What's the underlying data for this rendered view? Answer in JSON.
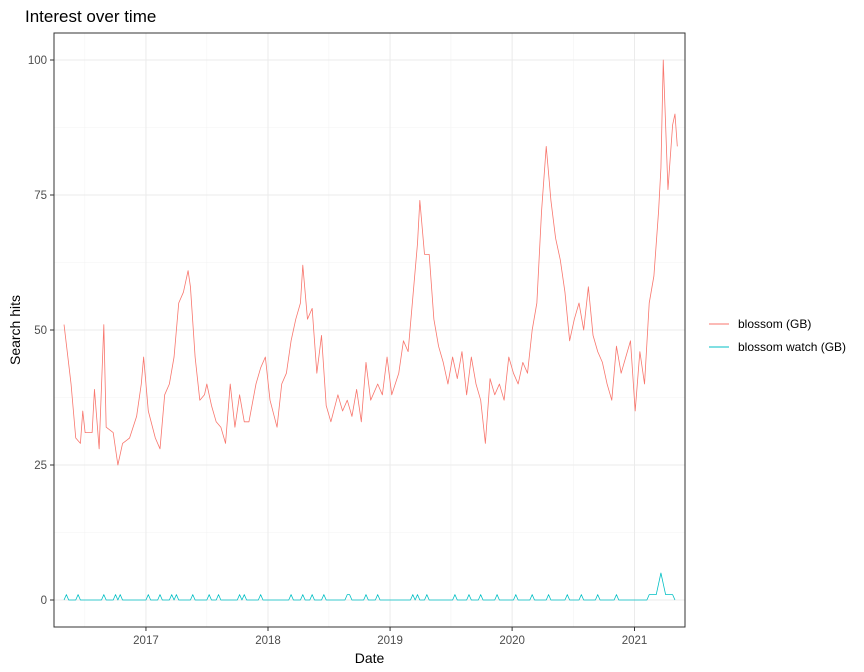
{
  "chart_data": {
    "type": "line",
    "title": "Interest over time",
    "xlabel": "Date",
    "ylabel": "Search hits",
    "xlim": [
      "2016-04-01",
      "2021-06-01"
    ],
    "ylim": [
      -5,
      105
    ],
    "x_ticks": [
      "2017-01-01",
      "2018-01-01",
      "2019-01-01",
      "2020-01-01",
      "2021-01-01"
    ],
    "x_tick_labels": [
      "2017",
      "2018",
      "2019",
      "2020",
      "2021"
    ],
    "y_ticks": [
      0,
      25,
      50,
      75,
      100
    ],
    "y_tick_labels": [
      "0",
      "25",
      "50",
      "75",
      "100"
    ],
    "grid": true,
    "legend_position": "right",
    "series": [
      {
        "name": "blossom (GB)",
        "color": "#F8766D",
        "points": [
          [
            "2016-05-01",
            51
          ],
          [
            "2016-05-22",
            40
          ],
          [
            "2016-06-05",
            30
          ],
          [
            "2016-06-19",
            29
          ],
          [
            "2016-06-26",
            35
          ],
          [
            "2016-07-03",
            31
          ],
          [
            "2016-07-24",
            31
          ],
          [
            "2016-07-31",
            39
          ],
          [
            "2016-08-14",
            28
          ],
          [
            "2016-08-28",
            51
          ],
          [
            "2016-09-04",
            32
          ],
          [
            "2016-09-25",
            31
          ],
          [
            "2016-10-09",
            25
          ],
          [
            "2016-10-23",
            29
          ],
          [
            "2016-11-13",
            30
          ],
          [
            "2016-12-04",
            34
          ],
          [
            "2016-12-18",
            40
          ],
          [
            "2016-12-25",
            45
          ],
          [
            "2017-01-08",
            35
          ],
          [
            "2017-01-29",
            30
          ],
          [
            "2017-02-12",
            28
          ],
          [
            "2017-02-26",
            38
          ],
          [
            "2017-03-12",
            40
          ],
          [
            "2017-03-26",
            45
          ],
          [
            "2017-04-09",
            55
          ],
          [
            "2017-04-23",
            57
          ],
          [
            "2017-05-07",
            61
          ],
          [
            "2017-05-14",
            58
          ],
          [
            "2017-05-28",
            45
          ],
          [
            "2017-06-11",
            37
          ],
          [
            "2017-06-25",
            38
          ],
          [
            "2017-07-02",
            40
          ],
          [
            "2017-07-16",
            36
          ],
          [
            "2017-07-30",
            33
          ],
          [
            "2017-08-13",
            32
          ],
          [
            "2017-08-27",
            29
          ],
          [
            "2017-09-10",
            40
          ],
          [
            "2017-09-24",
            32
          ],
          [
            "2017-10-08",
            38
          ],
          [
            "2017-10-22",
            33
          ],
          [
            "2017-11-05",
            33
          ],
          [
            "2017-11-26",
            40
          ],
          [
            "2017-12-10",
            43
          ],
          [
            "2017-12-24",
            45
          ],
          [
            "2018-01-07",
            37
          ],
          [
            "2018-01-28",
            32
          ],
          [
            "2018-02-11",
            40
          ],
          [
            "2018-02-25",
            42
          ],
          [
            "2018-03-11",
            48
          ],
          [
            "2018-03-25",
            52
          ],
          [
            "2018-04-08",
            55
          ],
          [
            "2018-04-15",
            62
          ],
          [
            "2018-04-29",
            52
          ],
          [
            "2018-05-13",
            54
          ],
          [
            "2018-05-27",
            42
          ],
          [
            "2018-06-10",
            49
          ],
          [
            "2018-06-24",
            36
          ],
          [
            "2018-07-08",
            33
          ],
          [
            "2018-07-29",
            38
          ],
          [
            "2018-08-12",
            35
          ],
          [
            "2018-08-26",
            37
          ],
          [
            "2018-09-09",
            34
          ],
          [
            "2018-09-23",
            39
          ],
          [
            "2018-10-07",
            33
          ],
          [
            "2018-10-21",
            44
          ],
          [
            "2018-11-04",
            37
          ],
          [
            "2018-11-25",
            40
          ],
          [
            "2018-12-09",
            38
          ],
          [
            "2018-12-23",
            45
          ],
          [
            "2019-01-06",
            38
          ],
          [
            "2019-01-27",
            42
          ],
          [
            "2019-02-10",
            48
          ],
          [
            "2019-02-24",
            46
          ],
          [
            "2019-03-10",
            56
          ],
          [
            "2019-03-24",
            66
          ],
          [
            "2019-03-31",
            74
          ],
          [
            "2019-04-14",
            64
          ],
          [
            "2019-04-28",
            64
          ],
          [
            "2019-05-12",
            52
          ],
          [
            "2019-05-26",
            47
          ],
          [
            "2019-06-09",
            44
          ],
          [
            "2019-06-23",
            40
          ],
          [
            "2019-07-07",
            45
          ],
          [
            "2019-07-21",
            41
          ],
          [
            "2019-08-04",
            46
          ],
          [
            "2019-08-18",
            38
          ],
          [
            "2019-09-01",
            45
          ],
          [
            "2019-09-15",
            40
          ],
          [
            "2019-09-29",
            37
          ],
          [
            "2019-10-13",
            29
          ],
          [
            "2019-10-27",
            41
          ],
          [
            "2019-11-10",
            38
          ],
          [
            "2019-11-24",
            40
          ],
          [
            "2019-12-08",
            37
          ],
          [
            "2019-12-22",
            45
          ],
          [
            "2020-01-05",
            42
          ],
          [
            "2020-01-19",
            40
          ],
          [
            "2020-02-02",
            44
          ],
          [
            "2020-02-16",
            42
          ],
          [
            "2020-03-01",
            50
          ],
          [
            "2020-03-15",
            55
          ],
          [
            "2020-03-29",
            72
          ],
          [
            "2020-04-12",
            84
          ],
          [
            "2020-04-26",
            74
          ],
          [
            "2020-05-10",
            67
          ],
          [
            "2020-05-24",
            63
          ],
          [
            "2020-06-07",
            57
          ],
          [
            "2020-06-21",
            48
          ],
          [
            "2020-07-05",
            52
          ],
          [
            "2020-07-19",
            55
          ],
          [
            "2020-08-02",
            50
          ],
          [
            "2020-08-16",
            58
          ],
          [
            "2020-08-30",
            49
          ],
          [
            "2020-09-13",
            46
          ],
          [
            "2020-09-27",
            44
          ],
          [
            "2020-10-11",
            40
          ],
          [
            "2020-10-25",
            37
          ],
          [
            "2020-11-08",
            47
          ],
          [
            "2020-11-22",
            42
          ],
          [
            "2020-12-06",
            45
          ],
          [
            "2020-12-20",
            48
          ],
          [
            "2021-01-03",
            35
          ],
          [
            "2021-01-17",
            46
          ],
          [
            "2021-01-31",
            40
          ],
          [
            "2021-02-14",
            55
          ],
          [
            "2021-02-28",
            60
          ],
          [
            "2021-03-14",
            72
          ],
          [
            "2021-03-21",
            80
          ],
          [
            "2021-03-28",
            100
          ],
          [
            "2021-04-11",
            76
          ],
          [
            "2021-04-25",
            88
          ],
          [
            "2021-05-02",
            90
          ],
          [
            "2021-05-09",
            84
          ]
        ]
      },
      {
        "name": "blossom watch (GB)",
        "color": "#00BFC4",
        "points": [
          [
            "2016-05-01",
            0
          ],
          [
            "2016-05-08",
            1
          ],
          [
            "2016-05-15",
            0
          ],
          [
            "2016-06-05",
            0
          ],
          [
            "2016-06-12",
            1
          ],
          [
            "2016-06-19",
            0
          ],
          [
            "2016-08-21",
            0
          ],
          [
            "2016-08-28",
            1
          ],
          [
            "2016-09-04",
            0
          ],
          [
            "2016-09-25",
            0
          ],
          [
            "2016-10-02",
            1
          ],
          [
            "2016-10-09",
            0
          ],
          [
            "2016-10-16",
            1
          ],
          [
            "2016-10-23",
            0
          ],
          [
            "2017-01-01",
            0
          ],
          [
            "2017-01-08",
            1
          ],
          [
            "2017-01-15",
            0
          ],
          [
            "2017-02-05",
            0
          ],
          [
            "2017-02-12",
            1
          ],
          [
            "2017-02-19",
            0
          ],
          [
            "2017-03-12",
            0
          ],
          [
            "2017-03-19",
            1
          ],
          [
            "2017-03-26",
            0
          ],
          [
            "2017-04-02",
            1
          ],
          [
            "2017-04-09",
            0
          ],
          [
            "2017-05-14",
            0
          ],
          [
            "2017-05-21",
            1
          ],
          [
            "2017-05-28",
            0
          ],
          [
            "2017-07-02",
            0
          ],
          [
            "2017-07-09",
            1
          ],
          [
            "2017-07-16",
            0
          ],
          [
            "2017-07-30",
            0
          ],
          [
            "2017-08-06",
            1
          ],
          [
            "2017-08-13",
            0
          ],
          [
            "2017-10-01",
            0
          ],
          [
            "2017-10-08",
            1
          ],
          [
            "2017-10-15",
            0
          ],
          [
            "2017-10-22",
            1
          ],
          [
            "2017-10-29",
            0
          ],
          [
            "2017-12-03",
            0
          ],
          [
            "2017-12-10",
            1
          ],
          [
            "2017-12-17",
            0
          ],
          [
            "2018-03-04",
            0
          ],
          [
            "2018-03-11",
            1
          ],
          [
            "2018-03-18",
            0
          ],
          [
            "2018-04-08",
            0
          ],
          [
            "2018-04-15",
            1
          ],
          [
            "2018-04-22",
            0
          ],
          [
            "2018-05-06",
            0
          ],
          [
            "2018-05-13",
            1
          ],
          [
            "2018-05-20",
            0
          ],
          [
            "2018-06-10",
            0
          ],
          [
            "2018-06-17",
            1
          ],
          [
            "2018-06-24",
            0
          ],
          [
            "2018-08-19",
            0
          ],
          [
            "2018-08-26",
            1
          ],
          [
            "2018-09-02",
            1
          ],
          [
            "2018-09-09",
            0
          ],
          [
            "2018-10-14",
            0
          ],
          [
            "2018-10-21",
            1
          ],
          [
            "2018-10-28",
            0
          ],
          [
            "2018-11-18",
            0
          ],
          [
            "2018-11-25",
            1
          ],
          [
            "2018-12-02",
            0
          ],
          [
            "2019-03-03",
            0
          ],
          [
            "2019-03-10",
            1
          ],
          [
            "2019-03-17",
            0
          ],
          [
            "2019-03-24",
            1
          ],
          [
            "2019-03-31",
            0
          ],
          [
            "2019-04-14",
            0
          ],
          [
            "2019-04-21",
            1
          ],
          [
            "2019-04-28",
            0
          ],
          [
            "2019-07-07",
            0
          ],
          [
            "2019-07-14",
            1
          ],
          [
            "2019-07-21",
            0
          ],
          [
            "2019-08-18",
            0
          ],
          [
            "2019-08-25",
            1
          ],
          [
            "2019-09-01",
            0
          ],
          [
            "2019-09-22",
            0
          ],
          [
            "2019-09-29",
            1
          ],
          [
            "2019-10-06",
            0
          ],
          [
            "2019-11-10",
            0
          ],
          [
            "2019-11-17",
            1
          ],
          [
            "2019-11-24",
            0
          ],
          [
            "2020-01-05",
            0
          ],
          [
            "2020-01-12",
            1
          ],
          [
            "2020-01-19",
            0
          ],
          [
            "2020-02-23",
            0
          ],
          [
            "2020-03-01",
            1
          ],
          [
            "2020-03-08",
            0
          ],
          [
            "2020-04-12",
            0
          ],
          [
            "2020-04-19",
            1
          ],
          [
            "2020-04-26",
            0
          ],
          [
            "2020-06-07",
            0
          ],
          [
            "2020-06-14",
            1
          ],
          [
            "2020-06-21",
            0
          ],
          [
            "2020-07-19",
            0
          ],
          [
            "2020-07-26",
            1
          ],
          [
            "2020-08-02",
            0
          ],
          [
            "2020-09-06",
            0
          ],
          [
            "2020-09-13",
            1
          ],
          [
            "2020-09-20",
            0
          ],
          [
            "2020-11-01",
            0
          ],
          [
            "2020-11-08",
            1
          ],
          [
            "2020-11-15",
            0
          ],
          [
            "2021-02-07",
            0
          ],
          [
            "2021-02-14",
            1
          ],
          [
            "2021-03-07",
            1
          ],
          [
            "2021-03-14",
            3
          ],
          [
            "2021-03-21",
            5
          ],
          [
            "2021-03-28",
            3
          ],
          [
            "2021-04-04",
            1
          ],
          [
            "2021-04-25",
            1
          ],
          [
            "2021-05-02",
            0
          ]
        ]
      }
    ]
  }
}
